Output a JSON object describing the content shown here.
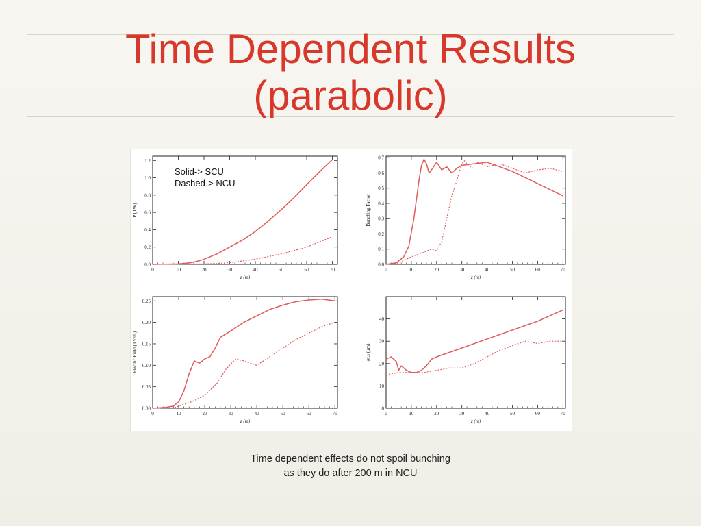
{
  "slide": {
    "title_line1": "Time Dependent Results",
    "title_line2": "(parabolic)",
    "caption_line1": "Time dependent effects do not spoil bunching",
    "caption_line2": "as they do after 200 m in NCU",
    "accent_color": "#d8382c",
    "curve_color": "#e05a5a"
  },
  "chart_data": [
    {
      "type": "line",
      "xlabel": "z (m)",
      "ylabel": "P (TW)",
      "xlim": [
        0,
        72
      ],
      "ylim": [
        0,
        1.25
      ],
      "xticks": [
        0,
        10,
        20,
        30,
        40,
        50,
        60,
        70
      ],
      "xtick_labels": [
        "0",
        "10",
        "20",
        "30",
        "40",
        "50",
        "60",
        "70"
      ],
      "yticks": [
        0,
        0.2,
        0.4,
        0.6,
        0.8,
        1.0,
        1.2
      ],
      "ytick_labels": [
        "0.0",
        "0.2",
        "0.4",
        "0.6",
        "0.8",
        "1.0",
        "1.2"
      ],
      "legend_lines": [
        "Solid-> SCU",
        "Dashed-> NCU"
      ],
      "series": [
        {
          "style": "solid",
          "x": [
            0,
            10,
            15,
            18,
            20,
            25,
            30,
            35,
            40,
            45,
            50,
            55,
            60,
            65,
            70
          ],
          "y": [
            0.0,
            0.005,
            0.02,
            0.04,
            0.06,
            0.12,
            0.2,
            0.28,
            0.38,
            0.5,
            0.63,
            0.77,
            0.92,
            1.07,
            1.21
          ]
        },
        {
          "style": "dashed",
          "x": [
            0,
            20,
            25,
            30,
            35,
            40,
            45,
            50,
            55,
            60,
            65,
            70
          ],
          "y": [
            0.0,
            0.005,
            0.01,
            0.02,
            0.04,
            0.06,
            0.09,
            0.12,
            0.16,
            0.2,
            0.26,
            0.32
          ]
        }
      ]
    },
    {
      "type": "line",
      "xlabel": "z (m)",
      "ylabel": "Bunching Factor",
      "xlim": [
        0,
        71
      ],
      "ylim": [
        0,
        0.71
      ],
      "xticks": [
        0,
        10,
        20,
        30,
        40,
        50,
        60,
        70
      ],
      "xtick_labels": [
        "0",
        "10",
        "20",
        "30",
        "40",
        "50",
        "60",
        "70"
      ],
      "yticks": [
        0,
        0.1,
        0.2,
        0.3,
        0.4,
        0.5,
        0.6,
        0.7
      ],
      "ytick_labels": [
        "0.0",
        "0.1",
        "0.2",
        "0.3",
        "0.4",
        "0.5",
        "0.6",
        "0.7"
      ],
      "series": [
        {
          "style": "solid",
          "x": [
            0,
            4,
            7,
            9,
            11,
            13,
            14,
            15,
            16,
            17,
            18,
            20,
            22,
            24,
            26,
            28,
            30,
            35,
            40,
            45,
            50,
            55,
            60,
            65,
            70
          ],
          "y": [
            0.0,
            0.01,
            0.05,
            0.12,
            0.3,
            0.55,
            0.65,
            0.69,
            0.66,
            0.6,
            0.62,
            0.67,
            0.62,
            0.64,
            0.6,
            0.63,
            0.65,
            0.66,
            0.67,
            0.64,
            0.61,
            0.57,
            0.53,
            0.49,
            0.45
          ]
        },
        {
          "style": "dashed",
          "x": [
            0,
            5,
            10,
            15,
            18,
            20,
            22,
            24,
            26,
            28,
            30,
            31,
            32,
            34,
            36,
            40,
            45,
            50,
            55,
            60,
            65,
            70
          ],
          "y": [
            0.0,
            0.01,
            0.05,
            0.08,
            0.1,
            0.09,
            0.15,
            0.3,
            0.45,
            0.55,
            0.66,
            0.68,
            0.66,
            0.63,
            0.67,
            0.64,
            0.66,
            0.63,
            0.6,
            0.62,
            0.63,
            0.61
          ]
        }
      ]
    },
    {
      "type": "line",
      "xlabel": "z (m)",
      "ylabel": "Electric Field (TV/m)",
      "xlim": [
        0,
        71
      ],
      "ylim": [
        0,
        0.26
      ],
      "xticks": [
        0,
        10,
        20,
        30,
        40,
        50,
        60,
        70
      ],
      "xtick_labels": [
        "0",
        "10",
        "20",
        "30",
        "40",
        "50",
        "60",
        "70"
      ],
      "yticks": [
        0,
        0.05,
        0.1,
        0.15,
        0.2,
        0.25
      ],
      "ytick_labels": [
        "0.00",
        "0.05",
        "0.10",
        "0.15",
        "0.20",
        "0.25"
      ],
      "series": [
        {
          "style": "solid",
          "x": [
            0,
            5,
            8,
            10,
            12,
            14,
            16,
            18,
            20,
            22,
            24,
            26,
            30,
            35,
            40,
            45,
            50,
            55,
            60,
            65,
            70
          ],
          "y": [
            0.0,
            0.002,
            0.005,
            0.015,
            0.04,
            0.08,
            0.11,
            0.105,
            0.115,
            0.12,
            0.14,
            0.165,
            0.18,
            0.2,
            0.215,
            0.23,
            0.24,
            0.248,
            0.252,
            0.254,
            0.25
          ]
        },
        {
          "style": "dashed",
          "x": [
            0,
            8,
            10,
            15,
            20,
            25,
            28,
            32,
            35,
            40,
            45,
            50,
            55,
            60,
            65,
            70
          ],
          "y": [
            0.0,
            0.001,
            0.005,
            0.015,
            0.03,
            0.06,
            0.09,
            0.115,
            0.11,
            0.1,
            0.12,
            0.14,
            0.16,
            0.175,
            0.19,
            0.2
          ]
        }
      ]
    },
    {
      "type": "line",
      "xlabel": "z (m)",
      "ylabel": "σr,s (μm)",
      "xlim": [
        0,
        71
      ],
      "ylim": [
        0,
        50
      ],
      "xticks": [
        0,
        10,
        20,
        30,
        40,
        50,
        60,
        70
      ],
      "xtick_labels": [
        "0",
        "10",
        "20",
        "30",
        "40",
        "50",
        "60",
        "70"
      ],
      "yticks": [
        0,
        10,
        20,
        30,
        40
      ],
      "ytick_labels": [
        "0",
        "10",
        "20",
        "30",
        "40"
      ],
      "series": [
        {
          "style": "solid",
          "x": [
            0,
            2,
            4,
            5,
            6,
            8,
            10,
            12,
            14,
            16,
            18,
            20,
            25,
            30,
            40,
            50,
            60,
            70
          ],
          "y": [
            22,
            23,
            21,
            17,
            19,
            17,
            16,
            16,
            17,
            19,
            22,
            23,
            25,
            27,
            31,
            35,
            39,
            44
          ]
        },
        {
          "style": "dashed",
          "x": [
            0,
            5,
            10,
            15,
            20,
            25,
            30,
            35,
            40,
            45,
            50,
            55,
            60,
            65,
            70
          ],
          "y": [
            15,
            16,
            16,
            16,
            17,
            18,
            18,
            20,
            23,
            26,
            28,
            30,
            29,
            30,
            30
          ]
        }
      ]
    }
  ]
}
